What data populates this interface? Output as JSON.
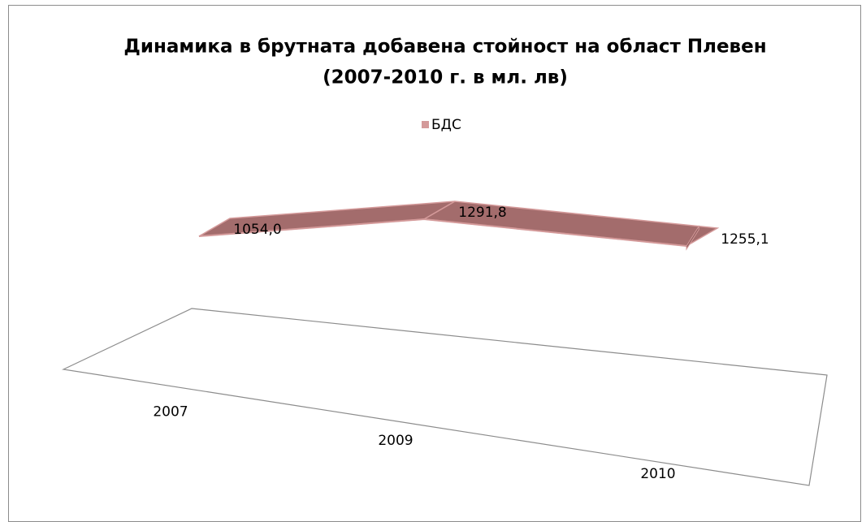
{
  "chart_data": {
    "type": "line",
    "title": [
      "Динамика в брутната добавена стойност на област Плевен",
      "(2007-2010 г.  в мл. лв)"
    ],
    "categories": [
      "2007",
      "2009",
      "2010"
    ],
    "series": [
      {
        "name": "БДС",
        "color": "#d49a9a",
        "values": [
          1054.0,
          1291.8,
          1255.1
        ],
        "value_labels": [
          "1054,0",
          "1291,8",
          "1255,1"
        ]
      }
    ],
    "legend": "top"
  }
}
